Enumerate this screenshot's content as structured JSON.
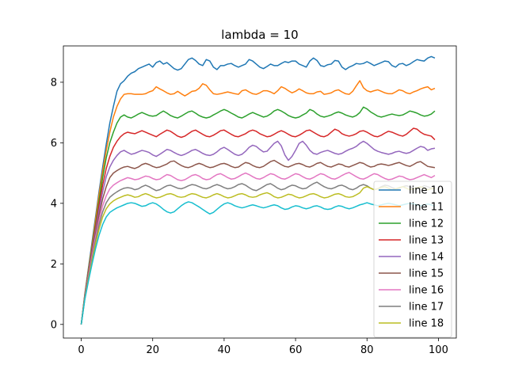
{
  "chart_data": {
    "type": "line",
    "title": "lambda = 10",
    "xlabel": "",
    "ylabel": "",
    "xlim": [
      -5,
      105
    ],
    "ylim": [
      -0.45,
      9.2
    ],
    "xticks": [
      0,
      20,
      40,
      60,
      80,
      100
    ],
    "yticks": [
      0,
      2,
      4,
      6,
      8
    ],
    "grid": false,
    "legend_position": "lower-right",
    "x": [
      0,
      1,
      2,
      3,
      4,
      5,
      6,
      7,
      8,
      9,
      10,
      11,
      12,
      13,
      14,
      15,
      16,
      17,
      18,
      19,
      20,
      21,
      22,
      23,
      24,
      25,
      26,
      27,
      28,
      29,
      30,
      31,
      32,
      33,
      34,
      35,
      36,
      37,
      38,
      39,
      40,
      41,
      42,
      43,
      44,
      45,
      46,
      47,
      48,
      49,
      50,
      51,
      52,
      53,
      54,
      55,
      56,
      57,
      58,
      59,
      60,
      61,
      62,
      63,
      64,
      65,
      66,
      67,
      68,
      69,
      70,
      71,
      72,
      73,
      74,
      75,
      76,
      77,
      78,
      79,
      80,
      81,
      82,
      83,
      84,
      85,
      86,
      87,
      88,
      89,
      90,
      91,
      92,
      93,
      94,
      95,
      96,
      97,
      98,
      99
    ],
    "series": [
      {
        "name": "line 10",
        "color": "#1f77b4",
        "values": [
          0.0,
          1.0,
          1.85,
          2.7,
          3.55,
          4.4,
          5.2,
          5.95,
          6.65,
          7.2,
          7.7,
          7.95,
          8.05,
          8.2,
          8.3,
          8.35,
          8.45,
          8.5,
          8.55,
          8.6,
          8.5,
          8.65,
          8.7,
          8.6,
          8.65,
          8.55,
          8.45,
          8.4,
          8.45,
          8.6,
          8.75,
          8.8,
          8.72,
          8.6,
          8.55,
          8.75,
          8.7,
          8.5,
          8.42,
          8.55,
          8.55,
          8.6,
          8.62,
          8.55,
          8.5,
          8.55,
          8.6,
          8.75,
          8.7,
          8.6,
          8.5,
          8.45,
          8.52,
          8.6,
          8.55,
          8.55,
          8.62,
          8.68,
          8.65,
          8.7,
          8.7,
          8.6,
          8.55,
          8.5,
          8.7,
          8.8,
          8.72,
          8.55,
          8.52,
          8.58,
          8.6,
          8.72,
          8.7,
          8.5,
          8.42,
          8.5,
          8.55,
          8.62,
          8.6,
          8.62,
          8.68,
          8.62,
          8.55,
          8.6,
          8.65,
          8.7,
          8.68,
          8.55,
          8.5,
          8.6,
          8.62,
          8.55,
          8.6,
          8.68,
          8.75,
          8.72,
          8.7,
          8.8,
          8.85,
          8.8
        ]
      },
      {
        "name": "line 11",
        "color": "#ff7f0e",
        "values": [
          0.0,
          0.98,
          1.8,
          2.6,
          3.45,
          4.3,
          5.05,
          5.75,
          6.35,
          6.85,
          7.2,
          7.45,
          7.6,
          7.62,
          7.62,
          7.6,
          7.6,
          7.6,
          7.62,
          7.68,
          7.72,
          7.85,
          7.78,
          7.72,
          7.65,
          7.6,
          7.62,
          7.7,
          7.62,
          7.55,
          7.62,
          7.7,
          7.72,
          7.8,
          7.95,
          7.9,
          7.75,
          7.62,
          7.6,
          7.62,
          7.65,
          7.68,
          7.65,
          7.62,
          7.6,
          7.72,
          7.75,
          7.68,
          7.62,
          7.6,
          7.65,
          7.72,
          7.72,
          7.68,
          7.62,
          7.72,
          7.85,
          7.8,
          7.72,
          7.65,
          7.7,
          7.78,
          7.72,
          7.65,
          7.62,
          7.62,
          7.68,
          7.7,
          7.6,
          7.62,
          7.65,
          7.72,
          7.75,
          7.68,
          7.62,
          7.6,
          7.7,
          7.88,
          8.05,
          7.82,
          7.72,
          7.68,
          7.72,
          7.75,
          7.7,
          7.65,
          7.62,
          7.62,
          7.68,
          7.75,
          7.72,
          7.65,
          7.62,
          7.68,
          7.72,
          7.78,
          7.82,
          7.85,
          7.75,
          7.8
        ]
      },
      {
        "name": "line 12",
        "color": "#2ca02c",
        "values": [
          0.0,
          0.96,
          1.75,
          2.52,
          3.3,
          4.1,
          4.85,
          5.5,
          6.0,
          6.35,
          6.65,
          6.85,
          6.92,
          6.85,
          6.82,
          6.88,
          6.95,
          7.0,
          6.95,
          6.9,
          6.88,
          6.9,
          6.98,
          7.05,
          6.98,
          6.9,
          6.85,
          6.82,
          6.88,
          6.95,
          7.02,
          7.05,
          6.98,
          6.9,
          6.85,
          6.82,
          6.85,
          6.92,
          6.98,
          7.05,
          7.1,
          7.05,
          6.98,
          6.92,
          6.85,
          6.82,
          6.88,
          6.95,
          7.0,
          6.95,
          6.9,
          6.85,
          6.88,
          6.95,
          7.05,
          7.1,
          7.05,
          6.98,
          6.9,
          6.85,
          6.82,
          6.85,
          6.92,
          6.98,
          7.1,
          7.05,
          6.95,
          6.88,
          6.85,
          6.88,
          6.92,
          6.98,
          7.02,
          6.98,
          6.92,
          6.88,
          6.85,
          6.9,
          7.0,
          7.18,
          7.12,
          7.02,
          6.95,
          6.88,
          6.85,
          6.88,
          6.92,
          6.95,
          6.92,
          6.9,
          6.92,
          6.98,
          7.05,
          7.02,
          6.98,
          6.92,
          6.88,
          6.9,
          6.95,
          7.05
        ]
      },
      {
        "name": "line 13",
        "color": "#d62728",
        "values": [
          0.0,
          0.94,
          1.7,
          2.45,
          3.2,
          3.95,
          4.6,
          5.15,
          5.55,
          5.85,
          6.05,
          6.2,
          6.3,
          6.35,
          6.32,
          6.3,
          6.35,
          6.4,
          6.35,
          6.3,
          6.25,
          6.2,
          6.28,
          6.35,
          6.42,
          6.38,
          6.3,
          6.22,
          6.18,
          6.22,
          6.3,
          6.38,
          6.42,
          6.35,
          6.28,
          6.22,
          6.2,
          6.25,
          6.32,
          6.4,
          6.42,
          6.35,
          6.28,
          6.22,
          6.2,
          6.25,
          6.3,
          6.38,
          6.42,
          6.38,
          6.3,
          6.25,
          6.2,
          6.22,
          6.28,
          6.35,
          6.4,
          6.35,
          6.28,
          6.22,
          6.2,
          6.25,
          6.32,
          6.4,
          6.42,
          6.35,
          6.28,
          6.22,
          6.2,
          6.25,
          6.35,
          6.45,
          6.4,
          6.3,
          6.25,
          6.22,
          6.25,
          6.3,
          6.38,
          6.4,
          6.35,
          6.28,
          6.22,
          6.2,
          6.25,
          6.32,
          6.38,
          6.35,
          6.3,
          6.25,
          6.22,
          6.28,
          6.38,
          6.48,
          6.45,
          6.35,
          6.28,
          6.25,
          6.22,
          6.1
        ]
      },
      {
        "name": "line 14",
        "color": "#9467bd",
        "values": [
          0.0,
          0.92,
          1.66,
          2.38,
          3.08,
          3.78,
          4.38,
          4.88,
          5.2,
          5.42,
          5.58,
          5.7,
          5.75,
          5.68,
          5.62,
          5.65,
          5.7,
          5.75,
          5.72,
          5.68,
          5.6,
          5.55,
          5.62,
          5.7,
          5.78,
          5.75,
          5.68,
          5.62,
          5.58,
          5.62,
          5.68,
          5.75,
          5.78,
          5.72,
          5.65,
          5.6,
          5.58,
          5.62,
          5.7,
          5.8,
          5.85,
          5.78,
          5.7,
          5.62,
          5.58,
          5.62,
          5.72,
          5.85,
          5.92,
          5.88,
          5.78,
          5.7,
          5.72,
          5.85,
          5.98,
          6.05,
          5.9,
          5.6,
          5.42,
          5.55,
          5.75,
          5.98,
          6.05,
          5.92,
          5.75,
          5.65,
          5.62,
          5.68,
          5.72,
          5.75,
          5.7,
          5.65,
          5.62,
          5.65,
          5.72,
          5.78,
          5.82,
          5.88,
          5.98,
          6.05,
          5.98,
          5.88,
          5.78,
          5.72,
          5.68,
          5.65,
          5.62,
          5.65,
          5.7,
          5.72,
          5.68,
          5.65,
          5.68,
          5.75,
          5.82,
          5.88,
          5.85,
          5.75,
          5.8,
          5.82
        ]
      },
      {
        "name": "line 15",
        "color": "#8c564b",
        "values": [
          0.0,
          0.9,
          1.62,
          2.32,
          2.98,
          3.62,
          4.15,
          4.55,
          4.85,
          5.0,
          5.08,
          5.15,
          5.2,
          5.22,
          5.18,
          5.15,
          5.2,
          5.28,
          5.32,
          5.28,
          5.22,
          5.18,
          5.2,
          5.25,
          5.3,
          5.38,
          5.4,
          5.32,
          5.25,
          5.2,
          5.18,
          5.22,
          5.28,
          5.32,
          5.28,
          5.22,
          5.18,
          5.2,
          5.25,
          5.3,
          5.32,
          5.28,
          5.22,
          5.18,
          5.2,
          5.28,
          5.35,
          5.32,
          5.25,
          5.2,
          5.18,
          5.22,
          5.3,
          5.38,
          5.42,
          5.35,
          5.28,
          5.22,
          5.2,
          5.25,
          5.3,
          5.32,
          5.28,
          5.22,
          5.2,
          5.25,
          5.32,
          5.35,
          5.28,
          5.22,
          5.2,
          5.25,
          5.3,
          5.28,
          5.22,
          5.2,
          5.25,
          5.3,
          5.35,
          5.32,
          5.25,
          5.2,
          5.22,
          5.28,
          5.3,
          5.28,
          5.25,
          5.28,
          5.32,
          5.35,
          5.3,
          5.25,
          5.22,
          5.28,
          5.35,
          5.38,
          5.3,
          5.22,
          5.2,
          5.18
        ]
      },
      {
        "name": "line 16",
        "color": "#e377c2",
        "values": [
          0.0,
          0.88,
          1.58,
          2.25,
          2.88,
          3.45,
          3.92,
          4.25,
          4.48,
          4.6,
          4.68,
          4.75,
          4.8,
          4.85,
          4.82,
          4.78,
          4.8,
          4.85,
          4.9,
          4.88,
          4.82,
          4.78,
          4.8,
          4.88,
          4.95,
          4.92,
          4.85,
          4.78,
          4.75,
          4.78,
          4.85,
          4.92,
          4.95,
          4.9,
          4.82,
          4.78,
          4.8,
          4.88,
          4.95,
          4.98,
          4.92,
          4.85,
          4.8,
          4.82,
          4.88,
          4.95,
          5.0,
          4.95,
          4.88,
          4.82,
          4.8,
          4.85,
          4.92,
          4.98,
          4.95,
          4.88,
          4.82,
          4.8,
          4.85,
          4.92,
          4.98,
          4.95,
          4.88,
          4.82,
          4.8,
          4.85,
          4.92,
          4.98,
          4.95,
          4.88,
          4.82,
          4.8,
          4.85,
          4.92,
          4.98,
          5.02,
          4.95,
          4.88,
          4.82,
          4.8,
          4.85,
          4.92,
          4.98,
          4.95,
          4.88,
          4.82,
          4.78,
          4.8,
          4.85,
          4.9,
          4.88,
          4.82,
          4.78,
          4.8,
          4.85,
          4.9,
          4.95,
          4.9,
          4.85,
          4.92
        ]
      },
      {
        "name": "line 17",
        "color": "#7f7f7f",
        "values": [
          0.0,
          0.86,
          1.52,
          2.15,
          2.75,
          3.3,
          3.72,
          4.02,
          4.2,
          4.3,
          4.38,
          4.45,
          4.5,
          4.52,
          4.5,
          4.45,
          4.48,
          4.55,
          4.6,
          4.55,
          4.48,
          4.42,
          4.45,
          4.52,
          4.58,
          4.6,
          4.55,
          4.5,
          4.48,
          4.52,
          4.58,
          4.62,
          4.6,
          4.55,
          4.5,
          4.48,
          4.52,
          4.58,
          4.62,
          4.58,
          4.52,
          4.48,
          4.5,
          4.55,
          4.62,
          4.65,
          4.6,
          4.52,
          4.45,
          4.42,
          4.48,
          4.55,
          4.62,
          4.65,
          4.58,
          4.5,
          4.45,
          4.48,
          4.55,
          4.6,
          4.58,
          4.52,
          4.48,
          4.5,
          4.58,
          4.65,
          4.7,
          4.62,
          4.55,
          4.5,
          4.48,
          4.52,
          4.58,
          4.6,
          4.55,
          4.48,
          4.45,
          4.5,
          4.58,
          4.62,
          4.58,
          4.5,
          4.45,
          4.48,
          4.55,
          4.6,
          4.58,
          4.52,
          4.48,
          4.5,
          4.55,
          4.58,
          4.55,
          4.5,
          4.48,
          4.52,
          4.58,
          4.55,
          4.5,
          4.52
        ]
      },
      {
        "name": "line 18",
        "color": "#bcbd22",
        "values": [
          0.0,
          0.84,
          1.48,
          2.08,
          2.65,
          3.15,
          3.55,
          3.82,
          3.98,
          4.08,
          4.15,
          4.2,
          4.25,
          4.28,
          4.25,
          4.2,
          4.22,
          4.28,
          4.32,
          4.28,
          4.22,
          4.18,
          4.2,
          4.25,
          4.3,
          4.32,
          4.28,
          4.22,
          4.2,
          4.22,
          4.28,
          4.32,
          4.3,
          4.25,
          4.2,
          4.18,
          4.22,
          4.28,
          4.32,
          4.28,
          4.22,
          4.18,
          4.2,
          4.25,
          4.3,
          4.32,
          4.28,
          4.22,
          4.2,
          4.22,
          4.28,
          4.32,
          4.35,
          4.3,
          4.22,
          4.18,
          4.2,
          4.25,
          4.3,
          4.28,
          4.22,
          4.18,
          4.2,
          4.25,
          4.3,
          4.32,
          4.28,
          4.22,
          4.18,
          4.2,
          4.25,
          4.3,
          4.32,
          4.28,
          4.22,
          4.2,
          4.22,
          4.28,
          4.35,
          4.5,
          4.55,
          4.5,
          4.45,
          4.48,
          4.52,
          4.55,
          4.5,
          4.45,
          4.48,
          4.52,
          4.55,
          4.5,
          4.45,
          4.48,
          4.52,
          4.55,
          4.5,
          4.45,
          4.48,
          4.5
        ]
      },
      {
        "name": "",
        "color": "#17becf",
        "values": [
          0.0,
          0.82,
          1.42,
          1.98,
          2.5,
          2.95,
          3.3,
          3.55,
          3.7,
          3.78,
          3.85,
          3.9,
          3.95,
          4.0,
          4.02,
          4.0,
          3.95,
          3.9,
          3.92,
          3.98,
          4.02,
          3.98,
          3.9,
          3.8,
          3.72,
          3.68,
          3.72,
          3.82,
          3.92,
          4.0,
          4.05,
          4.02,
          3.95,
          3.88,
          3.8,
          3.72,
          3.65,
          3.7,
          3.8,
          3.9,
          3.98,
          4.02,
          3.98,
          3.92,
          3.88,
          3.85,
          3.88,
          3.92,
          3.95,
          3.92,
          3.88,
          3.85,
          3.88,
          3.92,
          3.95,
          3.92,
          3.85,
          3.8,
          3.82,
          3.88,
          3.92,
          3.9,
          3.85,
          3.82,
          3.85,
          3.9,
          3.92,
          3.88,
          3.82,
          3.8,
          3.82,
          3.88,
          3.92,
          3.9,
          3.85,
          3.82,
          3.85,
          3.9,
          3.95,
          3.98,
          4.02,
          3.98,
          3.95,
          3.92,
          3.95,
          3.98,
          4.0,
          3.98,
          3.95,
          3.92,
          3.95,
          3.98,
          4.0,
          3.98,
          3.95,
          3.92,
          3.95,
          3.98,
          3.95,
          3.9
        ]
      }
    ]
  }
}
